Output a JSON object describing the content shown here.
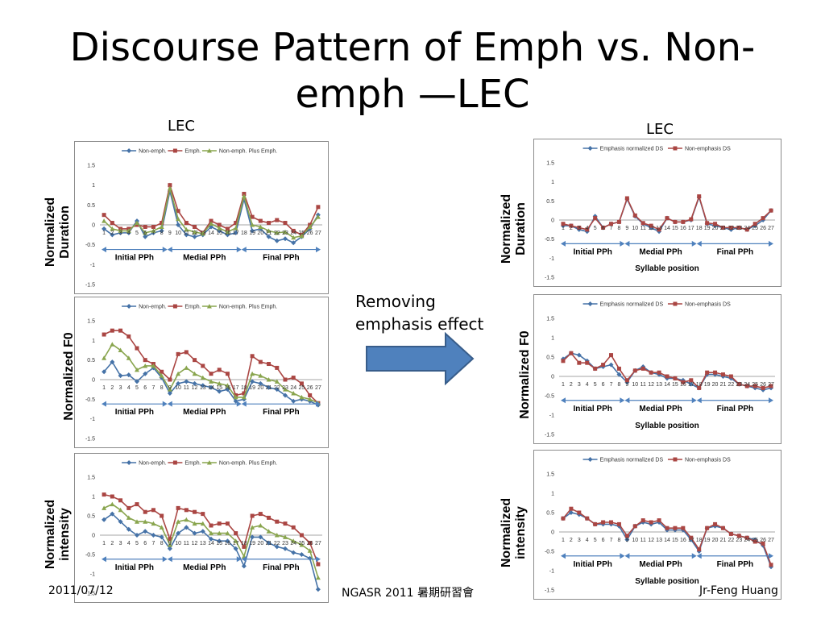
{
  "slide": {
    "title": "Discourse Pattern of Emph vs. Non-emph —LEC",
    "left_label": "LEC",
    "right_label": "LEC",
    "arrow_text": "Removing emphasis effect",
    "footer_date": "2011/07/12",
    "footer_center": "NGASR 2011 暑期研習會",
    "footer_author": "Jr-Feng Huang",
    "arrow_color": "#4f81bd"
  },
  "axis_titles": {
    "left_duration": "Normalized Duration",
    "left_f0": "Normalized F0",
    "left_intensity": "Normalized intensity",
    "right_duration": "Normalized Duration",
    "right_f0": "Normalized F0",
    "right_intensity": "Normalized intensity"
  },
  "colors": {
    "blue": "#4572a7",
    "red": "#aa4643",
    "green": "#89a54e",
    "phrase_arrow": "#4f81bd"
  },
  "chart_data": [
    {
      "id": "left_duration",
      "type": "line",
      "categories": [
        "1",
        "2",
        "3",
        "4",
        "5",
        "6",
        "7",
        "8",
        "9",
        "10",
        "11",
        "12",
        "13",
        "14",
        "15",
        "16",
        "17",
        "18",
        "19",
        "20",
        "21",
        "22",
        "23",
        "24",
        "25",
        "26",
        "27"
      ],
      "yticks": [
        "1.5",
        "1",
        "0.5",
        "0",
        "-0.5",
        "-1",
        "-1.5"
      ],
      "ylim": [
        -1.5,
        1.5
      ],
      "phrases": [
        "Initial PPh",
        "Medial PPh",
        "Final PPh"
      ],
      "xlabel": "",
      "series": [
        {
          "name": "Non-emph.",
          "color": "#4572a7",
          "marker": "diamond",
          "values": [
            -0.1,
            -0.25,
            -0.2,
            -0.2,
            0.1,
            -0.3,
            -0.2,
            -0.15,
            0.85,
            0.0,
            -0.25,
            -0.3,
            -0.25,
            -0.05,
            -0.15,
            -0.25,
            -0.2,
            0.65,
            -0.15,
            -0.1,
            -0.3,
            -0.4,
            -0.35,
            -0.45,
            -0.3,
            -0.1,
            0.25
          ]
        },
        {
          "name": "Emph.",
          "color": "#aa4643",
          "marker": "square",
          "values": [
            0.25,
            0.05,
            -0.1,
            -0.1,
            0.0,
            -0.05,
            -0.05,
            0.05,
            1.0,
            0.35,
            0.05,
            -0.05,
            -0.2,
            0.1,
            0.0,
            -0.1,
            0.05,
            0.78,
            0.2,
            0.1,
            0.05,
            0.12,
            0.05,
            -0.15,
            -0.25,
            0.0,
            0.45
          ]
        },
        {
          "name": "Non-emph. Plus Emph.",
          "color": "#89a54e",
          "marker": "triangle",
          "values": [
            0.1,
            -0.1,
            -0.15,
            -0.15,
            0.05,
            -0.2,
            -0.15,
            -0.05,
            0.92,
            0.15,
            -0.12,
            -0.18,
            -0.22,
            0.03,
            -0.08,
            -0.18,
            -0.08,
            0.72,
            0.0,
            -0.05,
            -0.15,
            -0.2,
            -0.18,
            -0.32,
            -0.28,
            -0.05,
            0.2
          ]
        }
      ]
    },
    {
      "id": "left_f0",
      "type": "line",
      "categories": [
        "1",
        "2",
        "3",
        "4",
        "5",
        "6",
        "7",
        "8",
        "9",
        "10",
        "11",
        "12",
        "13",
        "14",
        "15",
        "16",
        "17",
        "18",
        "19",
        "20",
        "21",
        "22",
        "23",
        "24",
        "25",
        "26",
        "27"
      ],
      "yticks": [
        "1.5",
        "1",
        "0.5",
        "0",
        "-0.5",
        "-1",
        "-1.5"
      ],
      "ylim": [
        -1.5,
        1.5
      ],
      "phrases": [
        "Initial PPh",
        "Medial PPh",
        "Final PPh"
      ],
      "xlabel": "",
      "series": [
        {
          "name": "Non-emph.",
          "color": "#4572a7",
          "marker": "diamond",
          "values": [
            0.2,
            0.45,
            0.1,
            0.12,
            -0.05,
            0.15,
            0.3,
            0.05,
            -0.35,
            -0.1,
            -0.05,
            -0.1,
            -0.15,
            -0.2,
            -0.3,
            -0.25,
            -0.55,
            -0.5,
            -0.05,
            -0.1,
            -0.2,
            -0.25,
            -0.4,
            -0.55,
            -0.5,
            -0.55,
            -0.65
          ]
        },
        {
          "name": "Emph.",
          "color": "#aa4643",
          "marker": "square",
          "values": [
            1.15,
            1.25,
            1.25,
            1.1,
            0.8,
            0.5,
            0.4,
            0.2,
            0.0,
            0.65,
            0.7,
            0.5,
            0.35,
            0.15,
            0.25,
            0.15,
            -0.4,
            -0.35,
            0.6,
            0.45,
            0.4,
            0.3,
            0.0,
            0.05,
            -0.1,
            -0.4,
            -0.6
          ]
        },
        {
          "name": "Non-emph. Plus Emph.",
          "color": "#89a54e",
          "marker": "triangle",
          "values": [
            0.55,
            0.9,
            0.75,
            0.55,
            0.25,
            0.35,
            0.35,
            0.1,
            -0.25,
            0.15,
            0.3,
            0.15,
            0.05,
            -0.05,
            -0.1,
            -0.15,
            -0.45,
            -0.45,
            0.15,
            0.1,
            0.0,
            -0.05,
            -0.25,
            -0.35,
            -0.45,
            -0.5,
            -0.6
          ]
        }
      ]
    },
    {
      "id": "left_intensity",
      "type": "line",
      "categories": [
        "1",
        "2",
        "3",
        "4",
        "5",
        "6",
        "7",
        "8",
        "9",
        "10",
        "11",
        "12",
        "13",
        "14",
        "15",
        "16",
        "17",
        "18",
        "19",
        "20",
        "21",
        "22",
        "23",
        "24",
        "25",
        "26",
        "27"
      ],
      "yticks": [
        "1.5",
        "1",
        "0.5",
        "0",
        "-0.5",
        "-1",
        "-1.5"
      ],
      "ylim": [
        -1.5,
        1.5
      ],
      "phrases": [
        "Initial PPh",
        "Medial PPh",
        "Final PPh"
      ],
      "xlabel": "",
      "series": [
        {
          "name": "Non-emph.",
          "color": "#4572a7",
          "marker": "diamond",
          "values": [
            0.4,
            0.55,
            0.35,
            0.15,
            0.0,
            0.1,
            0.0,
            -0.05,
            -0.35,
            0.05,
            0.2,
            0.05,
            0.1,
            -0.1,
            -0.15,
            -0.15,
            -0.35,
            -0.8,
            -0.05,
            -0.05,
            -0.2,
            -0.3,
            -0.35,
            -0.45,
            -0.5,
            -0.6,
            -1.4
          ]
        },
        {
          "name": "Emph.",
          "color": "#aa4643",
          "marker": "square",
          "values": [
            1.05,
            1.0,
            0.9,
            0.7,
            0.8,
            0.6,
            0.65,
            0.5,
            -0.1,
            0.7,
            0.65,
            0.6,
            0.55,
            0.25,
            0.3,
            0.3,
            0.05,
            -0.3,
            0.5,
            0.55,
            0.45,
            0.35,
            0.3,
            0.2,
            0.0,
            -0.2,
            -0.75
          ]
        },
        {
          "name": "Non-emph. Plus Emph.",
          "color": "#89a54e",
          "marker": "triangle",
          "values": [
            0.7,
            0.8,
            0.65,
            0.45,
            0.35,
            0.35,
            0.3,
            0.2,
            -0.25,
            0.35,
            0.4,
            0.3,
            0.3,
            0.05,
            0.05,
            0.05,
            -0.15,
            -0.55,
            0.2,
            0.25,
            0.1,
            0.0,
            -0.05,
            -0.15,
            -0.25,
            -0.4,
            -1.1
          ]
        }
      ]
    },
    {
      "id": "right_duration",
      "type": "line",
      "categories": [
        "1",
        "2",
        "3",
        "4",
        "5",
        "6",
        "7",
        "8",
        "9",
        "10",
        "11",
        "12",
        "13",
        "14",
        "15",
        "16",
        "17",
        "18",
        "19",
        "20",
        "21",
        "22",
        "23",
        "24",
        "25",
        "26",
        "27"
      ],
      "yticks": [
        "1.5",
        "1",
        "0.5",
        "0",
        "-0.5",
        "-1",
        "-1.5"
      ],
      "ylim": [
        -1.5,
        1.5
      ],
      "phrases": [
        "Initial PPh",
        "Medial PPh",
        "Final PPh"
      ],
      "xlabel": "Syllable position",
      "series": [
        {
          "name": "Emphasis normalized DS",
          "color": "#4572a7",
          "marker": "diamond",
          "values": [
            -0.15,
            -0.15,
            -0.25,
            -0.3,
            0.1,
            -0.2,
            -0.1,
            -0.05,
            0.55,
            0.1,
            -0.1,
            -0.2,
            -0.3,
            0.05,
            -0.05,
            -0.05,
            0.0,
            0.6,
            -0.1,
            -0.15,
            -0.2,
            -0.25,
            -0.2,
            -0.25,
            -0.15,
            0.0,
            0.25
          ]
        },
        {
          "name": "Non-emphasis DS",
          "color": "#aa4643",
          "marker": "square",
          "values": [
            -0.1,
            -0.15,
            -0.2,
            -0.25,
            0.05,
            -0.2,
            -0.1,
            -0.05,
            0.57,
            0.12,
            -0.08,
            -0.15,
            -0.25,
            0.05,
            -0.05,
            -0.05,
            0.02,
            0.62,
            -0.08,
            -0.1,
            -0.2,
            -0.2,
            -0.2,
            -0.25,
            -0.1,
            0.05,
            0.25
          ]
        }
      ]
    },
    {
      "id": "right_f0",
      "type": "line",
      "categories": [
        "1",
        "2",
        "3",
        "4",
        "5",
        "6",
        "7",
        "8",
        "9",
        "10",
        "11",
        "12",
        "13",
        "14",
        "15",
        "16",
        "17",
        "18",
        "19",
        "20",
        "21",
        "22",
        "23",
        "24",
        "25",
        "26",
        "27"
      ],
      "yticks": [
        "1.5",
        "1",
        "0.5",
        "0",
        "-0.5",
        "-1",
        "-1.5"
      ],
      "ylim": [
        -1.5,
        1.5
      ],
      "phrases": [
        "Initial PPh",
        "Medial PPh",
        "Final PPh"
      ],
      "xlabel": "Syllable position",
      "series": [
        {
          "name": "Emphasis normalized DS",
          "color": "#4572a7",
          "marker": "diamond",
          "values": [
            0.45,
            0.6,
            0.55,
            0.4,
            0.2,
            0.25,
            0.3,
            0.05,
            -0.15,
            0.15,
            0.25,
            0.1,
            0.05,
            -0.05,
            -0.05,
            -0.1,
            -0.2,
            -0.3,
            0.05,
            0.05,
            0.0,
            -0.05,
            -0.2,
            -0.25,
            -0.3,
            -0.35,
            -0.3
          ]
        },
        {
          "name": "Non-emphasis DS",
          "color": "#aa4643",
          "marker": "square",
          "values": [
            0.4,
            0.6,
            0.35,
            0.35,
            0.2,
            0.3,
            0.55,
            0.2,
            -0.1,
            0.15,
            0.2,
            0.1,
            0.1,
            0.0,
            -0.05,
            -0.15,
            -0.1,
            -0.3,
            0.1,
            0.1,
            0.05,
            0.0,
            -0.2,
            -0.25,
            -0.25,
            -0.3,
            -0.25
          ]
        }
      ]
    },
    {
      "id": "right_intensity",
      "type": "line",
      "categories": [
        "1",
        "2",
        "3",
        "4",
        "5",
        "6",
        "7",
        "8",
        "9",
        "10",
        "11",
        "12",
        "13",
        "14",
        "15",
        "16",
        "17",
        "18",
        "19",
        "20",
        "21",
        "22",
        "23",
        "24",
        "25",
        "26",
        "27"
      ],
      "yticks": [
        "1.5",
        "1",
        "0.5",
        "0",
        "-0.5",
        "-1",
        "-1.5"
      ],
      "ylim": [
        -1.5,
        1.5
      ],
      "phrases": [
        "Initial PPh",
        "Medial PPh",
        "Final PPh"
      ],
      "xlabel": "Syllable position",
      "series": [
        {
          "name": "Emphasis normalized DS",
          "color": "#4572a7",
          "marker": "diamond",
          "values": [
            0.35,
            0.5,
            0.45,
            0.35,
            0.2,
            0.2,
            0.2,
            0.15,
            -0.2,
            0.15,
            0.25,
            0.2,
            0.25,
            0.05,
            0.05,
            0.05,
            -0.2,
            -0.5,
            0.1,
            0.15,
            0.1,
            -0.05,
            -0.1,
            -0.15,
            -0.2,
            -0.35,
            -0.9
          ]
        },
        {
          "name": "Non-emphasis DS",
          "color": "#aa4643",
          "marker": "square",
          "values": [
            0.35,
            0.6,
            0.5,
            0.35,
            0.2,
            0.25,
            0.25,
            0.2,
            -0.1,
            0.15,
            0.3,
            0.25,
            0.3,
            0.1,
            0.1,
            0.1,
            -0.15,
            -0.45,
            0.1,
            0.2,
            0.1,
            -0.05,
            -0.1,
            -0.15,
            -0.25,
            -0.3,
            -0.85
          ]
        }
      ]
    }
  ]
}
